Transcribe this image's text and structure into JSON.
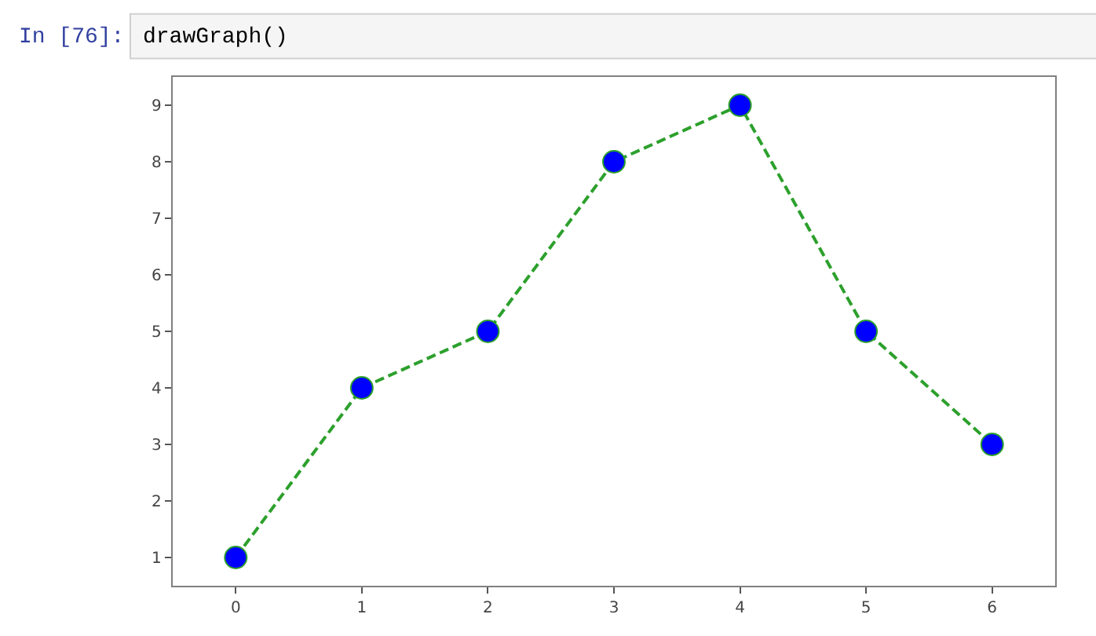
{
  "chart_data": {
    "type": "line",
    "annotations": [
      "In [76]:",
      "drawGraph()"
    ],
    "x": [
      0,
      1,
      2,
      3,
      4,
      5,
      6
    ],
    "series": [
      {
        "color": "#2ca02c",
        "colors": [
          "#0000ff",
          "#0000ff",
          "#0000ff",
          "#0000ff",
          "#0000ff",
          "#0000ff",
          "#0000ff"
        ],
        "values": [
          1,
          4,
          5,
          8,
          9,
          5,
          3
        ]
      }
    ],
    "xlim": [
      -0.5,
      6.5
    ],
    "xticks": [
      0,
      1,
      2,
      3,
      4,
      5,
      6
    ],
    "ylim": [
      0.5,
      9.5
    ],
    "yticks": [
      1,
      2,
      3,
      4,
      5,
      6,
      7,
      8,
      9
    ],
    "grid": false,
    "marker": "circle",
    "line_style": "dashed"
  }
}
